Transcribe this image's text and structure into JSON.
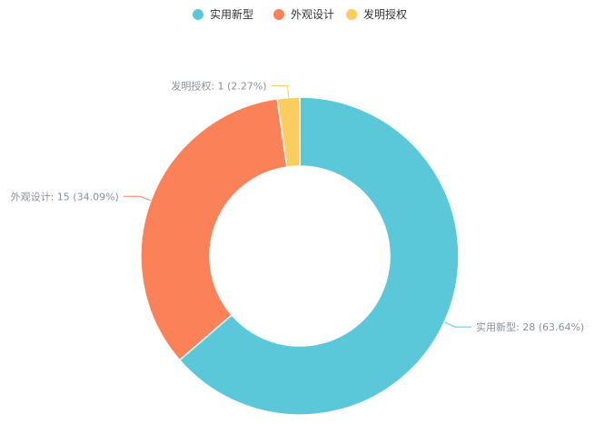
{
  "chart_data": {
    "type": "pie",
    "variant": "donut",
    "categories": [
      "实用新型",
      "外观设计",
      "发明授权"
    ],
    "values": [
      28,
      15,
      1
    ],
    "percents": [
      "63.64%",
      "34.09%",
      "2.27%"
    ],
    "colors": [
      "#5bc8d9",
      "#fa8158",
      "#f9ce5f"
    ],
    "slice_labels": [
      "实用新型: 28 (63.64%)",
      "外观设计: 15 (34.09%)",
      "发明授权: 1 (2.27%)"
    ],
    "legend": {
      "position": "top-center",
      "items": [
        {
          "name": "实用新型",
          "color": "#5bc8d9"
        },
        {
          "name": "外观设计",
          "color": "#fa8158"
        },
        {
          "name": "发明授权",
          "color": "#f9ce5f"
        }
      ]
    },
    "title": "",
    "grid": false
  }
}
